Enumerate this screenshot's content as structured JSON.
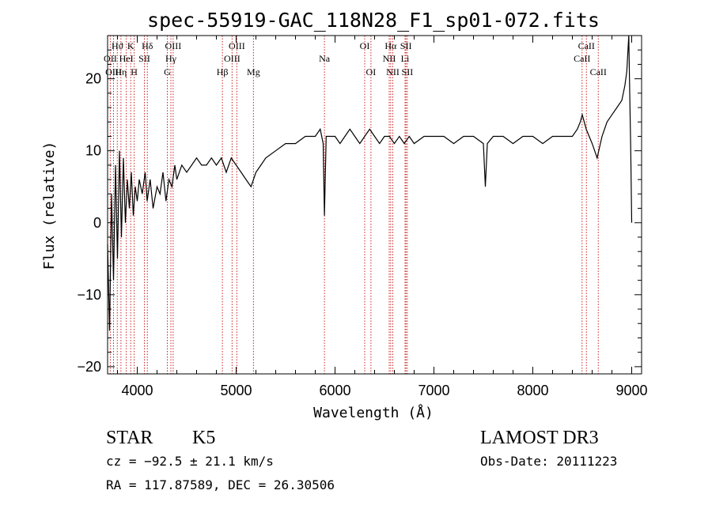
{
  "chart_data": {
    "type": "line",
    "title": "spec-55919-GAC_118N28_F1_sp01-072.fits",
    "xlabel": "Wavelength (Å)",
    "ylabel": "Flux (relative)",
    "xlim": [
      3700,
      9100
    ],
    "ylim": [
      -21,
      26
    ],
    "xticks": [
      "4000",
      "5000",
      "6000",
      "7000",
      "8000",
      "9000"
    ],
    "yticks": [
      "−20",
      "−10",
      "0",
      "10",
      "20"
    ],
    "series_color": "#000000",
    "line_marker_color": "#cc2222",
    "spectral_lines": [
      {
        "label": "Hϑ",
        "wavelength": 3798,
        "row": 0
      },
      {
        "label": "OII",
        "wavelength": 3727,
        "row": 1
      },
      {
        "label": "OIII",
        "wavelength": 3760,
        "row": 2
      },
      {
        "label": "K",
        "wavelength": 3934,
        "row": 0
      },
      {
        "label": "HeI",
        "wavelength": 3889,
        "row": 1
      },
      {
        "label": "Hη",
        "wavelength": 3835,
        "row": 2
      },
      {
        "label": "SII",
        "wavelength": 4072,
        "row": 1
      },
      {
        "label": "H",
        "wavelength": 3969,
        "row": 2
      },
      {
        "label": "Hδ",
        "wavelength": 4102,
        "row": 0
      },
      {
        "label": "OIII",
        "wavelength": 4363,
        "row": 0
      },
      {
        "label": "Hγ",
        "wavelength": 4340,
        "row": 1
      },
      {
        "label": "G",
        "wavelength": 4304,
        "row": 2
      },
      {
        "label": "OIII",
        "wavelength": 5007,
        "row": 0
      },
      {
        "label": "OIII",
        "wavelength": 4959,
        "row": 1
      },
      {
        "label": "Hβ",
        "wavelength": 4861,
        "row": 2
      },
      {
        "label": "Mg",
        "wavelength": 5175,
        "row": 2
      },
      {
        "label": "Na",
        "wavelength": 5893,
        "row": 1
      },
      {
        "label": "OI",
        "wavelength": 6300,
        "row": 0
      },
      {
        "label": "OI",
        "wavelength": 6363,
        "row": 2
      },
      {
        "label": "Hα",
        "wavelength": 6563,
        "row": 0
      },
      {
        "label": "SII",
        "wavelength": 6717,
        "row": 0
      },
      {
        "label": "NII",
        "wavelength": 6548,
        "row": 1
      },
      {
        "label": "Li",
        "wavelength": 6708,
        "row": 1
      },
      {
        "label": "NII",
        "wavelength": 6584,
        "row": 2
      },
      {
        "label": "SII",
        "wavelength": 6731,
        "row": 2
      },
      {
        "label": "CaII",
        "wavelength": 8542,
        "row": 0
      },
      {
        "label": "CaII",
        "wavelength": 8498,
        "row": 1
      },
      {
        "label": "CaII",
        "wavelength": 8662,
        "row": 2
      }
    ],
    "series": [
      {
        "x": [
          3700,
          3720,
          3740,
          3760,
          3780,
          3800,
          3820,
          3840,
          3860,
          3880,
          3900,
          3920,
          3940,
          3960,
          3980,
          4000,
          4020,
          4050,
          4080,
          4100,
          4130,
          4160,
          4200,
          4230,
          4260,
          4290,
          4320,
          4350,
          4380,
          4400,
          4450,
          4500,
          4550,
          4600,
          4650,
          4700,
          4750,
          4800,
          4850,
          4900,
          4950,
          5000,
          5050,
          5100,
          5150,
          5200,
          5250,
          5300,
          5400,
          5500,
          5600,
          5700,
          5800,
          5850,
          5880,
          5893,
          5910,
          5950,
          6000,
          6050,
          6100,
          6150,
          6200,
          6250,
          6300,
          6350,
          6400,
          6450,
          6500,
          6550,
          6600,
          6650,
          6700,
          6750,
          6800,
          6900,
          7000,
          7100,
          7200,
          7300,
          7400,
          7500,
          7520,
          7540,
          7600,
          7700,
          7800,
          7900,
          8000,
          8100,
          8200,
          8300,
          8400,
          8450,
          8480,
          8500,
          8540,
          8600,
          8650,
          8700,
          8750,
          8800,
          8850,
          8900,
          8930,
          8950,
          8970,
          8980,
          8990,
          9000
        ],
        "y": [
          -3,
          -15,
          4,
          -8,
          8,
          -5,
          10,
          -2,
          9,
          0,
          6,
          2,
          7,
          1,
          5,
          3,
          6,
          4,
          7,
          3,
          6,
          2,
          5,
          4,
          7,
          3,
          6,
          5,
          8,
          6,
          8,
          7,
          8,
          9,
          8,
          8,
          9,
          8,
          9,
          7,
          9,
          8,
          7,
          6,
          5,
          7,
          8,
          9,
          10,
          11,
          11,
          12,
          12,
          13,
          11,
          1,
          12,
          12,
          12,
          11,
          12,
          13,
          12,
          11,
          12,
          13,
          12,
          11,
          12,
          12,
          11,
          12,
          11,
          12,
          11,
          12,
          12,
          12,
          11,
          12,
          12,
          11,
          5,
          11,
          12,
          12,
          11,
          12,
          12,
          11,
          12,
          12,
          12,
          13,
          14,
          15,
          13,
          11,
          9,
          12,
          14,
          15,
          16,
          17,
          19,
          21,
          26,
          18,
          10,
          0
        ]
      }
    ]
  },
  "footer": {
    "object_class": "STAR",
    "subclass": "K5",
    "survey": "LAMOST DR3",
    "redshift": "cz = −92.5 ± 21.1 km/s",
    "obs_date": "Obs-Date: 20111223",
    "coords": "RA = 117.87589, DEC =  26.30506"
  }
}
